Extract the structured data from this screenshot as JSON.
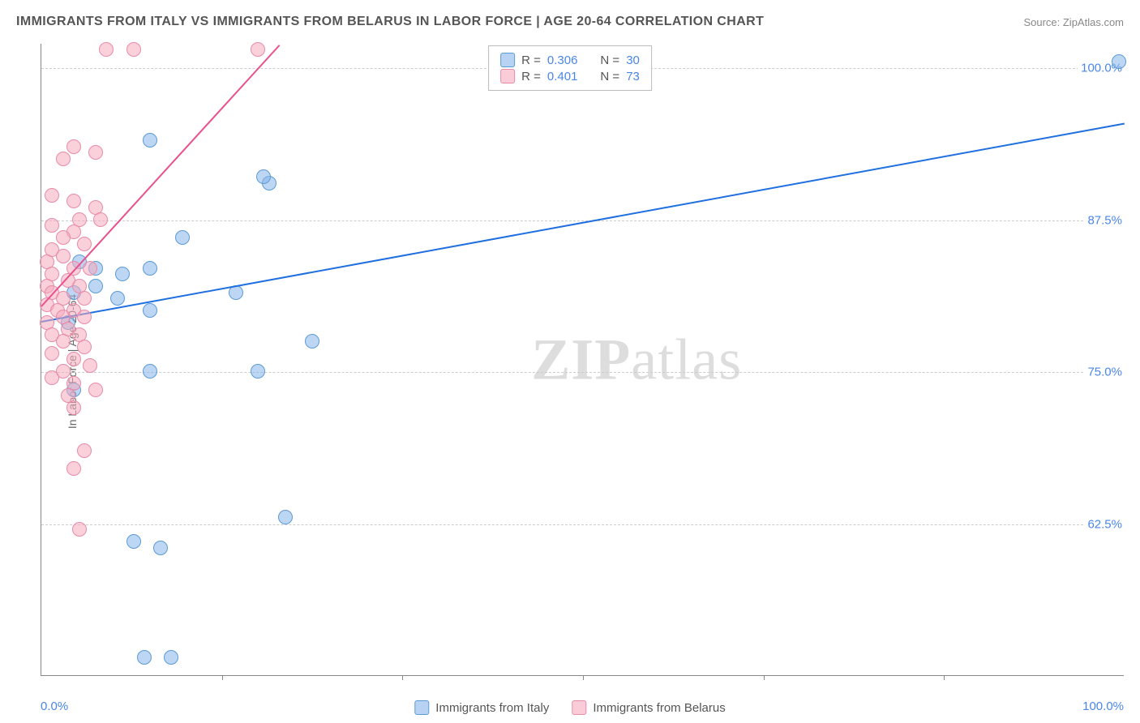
{
  "title": "IMMIGRANTS FROM ITALY VS IMMIGRANTS FROM BELARUS IN LABOR FORCE | AGE 20-64 CORRELATION CHART",
  "source": "Source: ZipAtlas.com",
  "y_axis_title": "In Labor Force | Age 20-64",
  "watermark_bold": "ZIP",
  "watermark_rest": "atlas",
  "chart": {
    "type": "scatter-with-trend",
    "xlim": [
      0,
      100
    ],
    "ylim": [
      50,
      102
    ],
    "x_ticks": [
      0,
      100
    ],
    "x_tick_labels": [
      "0.0%",
      "100.0%"
    ],
    "x_minor_ticks": [
      16.67,
      33.33,
      50,
      66.67,
      83.33
    ],
    "y_gridlines": [
      62.5,
      75.0,
      87.5,
      100.0
    ],
    "y_tick_labels": [
      "62.5%",
      "75.0%",
      "87.5%",
      "100.0%"
    ],
    "grid_color": "#cccccc",
    "background_color": "#ffffff",
    "series": [
      {
        "name": "Immigrants from Italy",
        "color_fill": "rgba(135,180,235,0.55)",
        "color_stroke": "#5b9bd5",
        "trend_color": "#1f6fe0",
        "R": "0.306",
        "N": "30",
        "trend": {
          "x1": 0,
          "y1": 79.2,
          "x2": 100,
          "y2": 95.5
        },
        "points": [
          [
            99.5,
            100.5
          ],
          [
            21,
            90.5
          ],
          [
            10,
            94.0
          ],
          [
            13,
            86.0
          ],
          [
            20.5,
            91.0
          ],
          [
            5,
            83.5
          ],
          [
            3.5,
            84.0
          ],
          [
            7.5,
            83.0
          ],
          [
            10,
            83.5
          ],
          [
            3,
            81.5
          ],
          [
            5,
            82.0
          ],
          [
            7,
            81.0
          ],
          [
            10,
            80.0
          ],
          [
            18,
            81.5
          ],
          [
            25,
            77.5
          ],
          [
            2.5,
            79.0
          ],
          [
            10,
            75.0
          ],
          [
            20,
            75.0
          ],
          [
            3,
            73.5
          ],
          [
            22.5,
            63.0
          ],
          [
            8.5,
            61.0
          ],
          [
            11,
            60.5
          ],
          [
            9.5,
            51.5
          ],
          [
            12,
            51.5
          ]
        ]
      },
      {
        "name": "Immigrants from Belarus",
        "color_fill": "rgba(245,170,190,0.55)",
        "color_stroke": "#e88ba8",
        "trend_color": "#e8518d",
        "R": "0.401",
        "N": "73",
        "trend": {
          "x1": 0,
          "y1": 80.5,
          "x2": 22,
          "y2": 102
        },
        "points": [
          [
            6,
            101.5
          ],
          [
            8.5,
            101.5
          ],
          [
            20,
            101.5
          ],
          [
            3,
            93.5
          ],
          [
            5,
            93.0
          ],
          [
            2,
            92.5
          ],
          [
            1,
            89.5
          ],
          [
            3,
            89.0
          ],
          [
            5,
            88.5
          ],
          [
            3.5,
            87.5
          ],
          [
            1,
            87.0
          ],
          [
            5.5,
            87.5
          ],
          [
            3,
            86.5
          ],
          [
            2,
            86.0
          ],
          [
            4,
            85.5
          ],
          [
            1,
            85.0
          ],
          [
            2,
            84.5
          ],
          [
            0.5,
            84.0
          ],
          [
            3,
            83.5
          ],
          [
            4.5,
            83.5
          ],
          [
            1,
            83.0
          ],
          [
            2.5,
            82.5
          ],
          [
            0.5,
            82.0
          ],
          [
            3.5,
            82.0
          ],
          [
            1,
            81.5
          ],
          [
            2,
            81.0
          ],
          [
            4,
            81.0
          ],
          [
            0.5,
            80.5
          ],
          [
            1.5,
            80.0
          ],
          [
            3,
            80.0
          ],
          [
            2,
            79.5
          ],
          [
            4,
            79.5
          ],
          [
            0.5,
            79.0
          ],
          [
            2.5,
            78.5
          ],
          [
            1,
            78.0
          ],
          [
            3.5,
            78.0
          ],
          [
            2,
            77.5
          ],
          [
            4,
            77.0
          ],
          [
            1,
            76.5
          ],
          [
            3,
            76.0
          ],
          [
            4.5,
            75.5
          ],
          [
            2,
            75.0
          ],
          [
            1,
            74.5
          ],
          [
            3,
            74.0
          ],
          [
            5,
            73.5
          ],
          [
            2.5,
            73.0
          ],
          [
            3,
            72.0
          ],
          [
            4,
            68.5
          ],
          [
            3,
            67.0
          ],
          [
            3.5,
            62.0
          ]
        ]
      }
    ]
  },
  "legend_top": {
    "rows": [
      {
        "swatch": "blue",
        "r_label": "R =",
        "r_val": "0.306",
        "n_label": "N =",
        "n_val": "30"
      },
      {
        "swatch": "pink",
        "r_label": "R =",
        "r_val": "0.401",
        "n_label": "N =",
        "n_val": "73"
      }
    ]
  },
  "legend_bottom": {
    "items": [
      {
        "swatch": "blue",
        "label": "Immigrants from Italy"
      },
      {
        "swatch": "pink",
        "label": "Immigrants from Belarus"
      }
    ]
  }
}
